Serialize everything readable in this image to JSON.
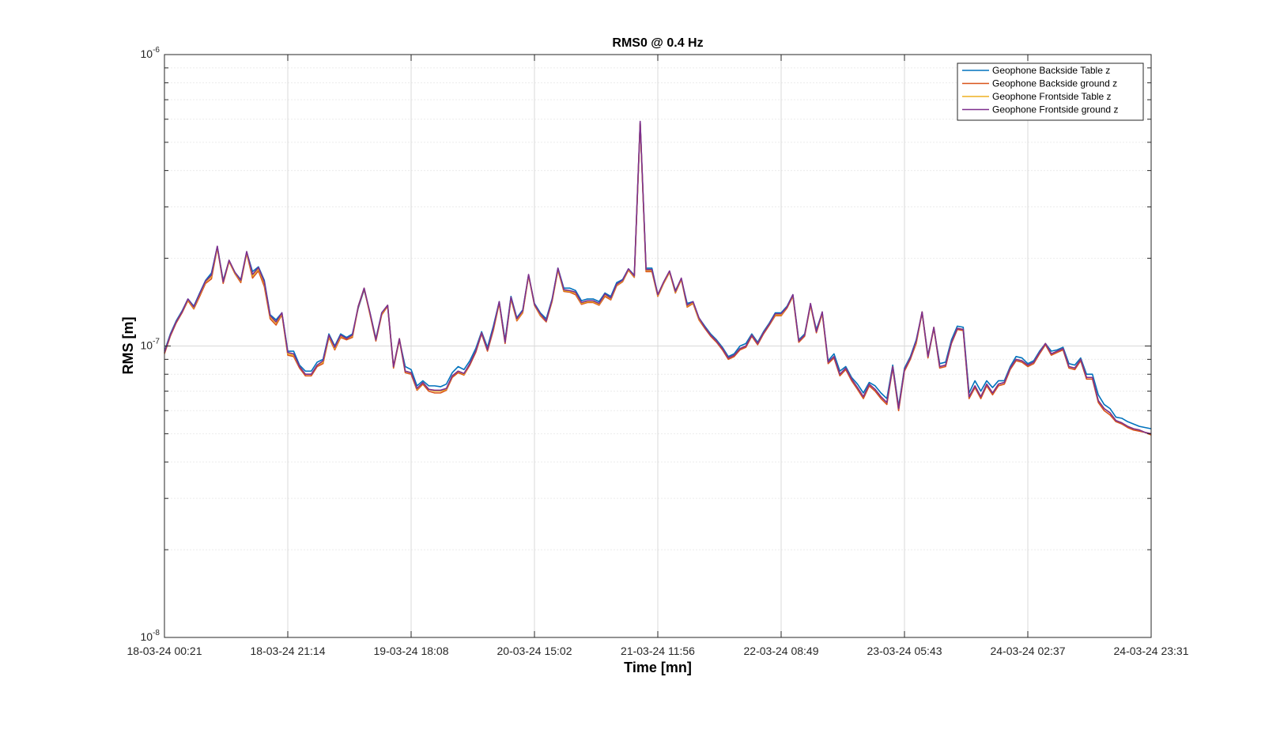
{
  "chart_data": {
    "type": "line",
    "title": "RMS0 @ 0.4 Hz",
    "xlabel": "Time [mn]",
    "ylabel": "RMS [m]",
    "yscale": "log",
    "ylim": [
      1e-08,
      1e-06
    ],
    "y_ticks": [
      {
        "value": 1e-08,
        "base": "10",
        "exp": "-8"
      },
      {
        "value": 1e-07,
        "base": "10",
        "exp": "-7"
      },
      {
        "value": 1e-06,
        "base": "10",
        "exp": "-6"
      }
    ],
    "x_ticks": [
      "18-03-24 00:21",
      "18-03-24 21:14",
      "19-03-24 18:08",
      "20-03-24 15:02",
      "21-03-24 11:56",
      "22-03-24 08:49",
      "23-03-24 05:43",
      "24-03-24 02:37",
      "24-03-24 23:31"
    ],
    "xlim": [
      "18-03-24 00:21",
      "24-03-24 23:31"
    ],
    "grid": true,
    "legend_position": "top-right",
    "series": [
      {
        "name": "Geophone Backside Table z",
        "color": "#0072BD",
        "values": [
          9.6e-08,
          1.1e-07,
          1.22e-07,
          1.32e-07,
          1.45e-07,
          1.37e-07,
          1.52e-07,
          1.68e-07,
          1.78e-07,
          2.19e-07,
          1.68e-07,
          1.96e-07,
          1.79e-07,
          1.69e-07,
          2.1e-07,
          1.8e-07,
          1.87e-07,
          1.68e-07,
          1.28e-07,
          1.23e-07,
          1.3e-07,
          9.6e-08,
          9.6e-08,
          8.6e-08,
          8.2e-08,
          8.2e-08,
          8.8e-08,
          9e-08,
          1.1e-07,
          1e-07,
          1.1e-07,
          1.07e-07,
          1.1e-07,
          1.35e-07,
          1.56e-07,
          1.3e-07,
          1.06e-07,
          1.3e-07,
          1.38e-07,
          8.5e-08,
          1.05e-07,
          8.5e-08,
          8.3e-08,
          7.3e-08,
          7.6e-08,
          7.3e-08,
          7.3e-08,
          7.25e-08,
          7.4e-08,
          8.1e-08,
          8.5e-08,
          8.3e-08,
          8.9e-08,
          9.8e-08,
          1.12e-07,
          9.9e-08,
          1.17e-07,
          1.42e-07,
          1.05e-07,
          1.48e-07,
          1.25e-07,
          1.33e-07,
          1.75e-07,
          1.4e-07,
          1.3e-07,
          1.24e-07,
          1.45e-07,
          1.85e-07,
          1.58e-07,
          1.58e-07,
          1.55e-07,
          1.43e-07,
          1.45e-07,
          1.45e-07,
          1.42e-07,
          1.52e-07,
          1.48e-07,
          1.65e-07,
          1.69e-07,
          1.84e-07,
          1.75e-07,
          5.85e-07,
          1.85e-07,
          1.85e-07,
          1.5e-07,
          1.65e-07,
          1.8e-07,
          1.55e-07,
          1.7e-07,
          1.4e-07,
          1.42e-07,
          1.25e-07,
          1.17e-07,
          1.1e-07,
          1.05e-07,
          9.9e-08,
          9.2e-08,
          9.4e-08,
          1e-07,
          1.02e-07,
          1.1e-07,
          1.03e-07,
          1.12e-07,
          1.2e-07,
          1.3e-07,
          1.3e-07,
          1.37e-07,
          1.5e-07,
          1.05e-07,
          1.1e-07,
          1.38e-07,
          1.14e-07,
          1.3e-07,
          8.9e-08,
          9.4e-08,
          8.2e-08,
          8.5e-08,
          7.8e-08,
          7.4e-08,
          6.9e-08,
          7.5e-08,
          7.3e-08,
          6.9e-08,
          6.6e-08,
          8.6e-08,
          6.2e-08,
          8.4e-08,
          9.2e-08,
          1.05e-07,
          1.3e-07,
          9.3e-08,
          1.15e-07,
          8.7e-08,
          8.8e-08,
          1.05e-07,
          1.17e-07,
          1.16e-07,
          6.9e-08,
          7.6e-08,
          7e-08,
          7.6e-08,
          7.2e-08,
          7.6e-08,
          7.6e-08,
          8.5e-08,
          9.2e-08,
          9.1e-08,
          8.7e-08,
          8.9e-08,
          9.6e-08,
          1.02e-07,
          9.6e-08,
          9.7e-08,
          9.9e-08,
          8.7e-08,
          8.6e-08,
          9.1e-08,
          8e-08,
          8e-08,
          6.8e-08,
          6.3e-08,
          6.1e-08,
          5.7e-08,
          5.65e-08,
          5.5e-08,
          5.4e-08,
          5.3e-08,
          5.25e-08,
          5.2e-08
        ]
      },
      {
        "name": "Geophone Backside ground z",
        "color": "#D95319",
        "values": [
          9.4e-08,
          1.08e-07,
          1.2e-07,
          1.3e-07,
          1.43e-07,
          1.34e-07,
          1.48e-07,
          1.64e-07,
          1.7e-07,
          2.17e-07,
          1.64e-07,
          1.95e-07,
          1.77e-07,
          1.65e-07,
          2.08e-07,
          1.71e-07,
          1.81e-07,
          1.6e-07,
          1.24e-07,
          1.18e-07,
          1.28e-07,
          9.3e-08,
          9.2e-08,
          8.4e-08,
          7.9e-08,
          7.9e-08,
          8.5e-08,
          8.7e-08,
          1.07e-07,
          9.7e-08,
          1.07e-07,
          1.05e-07,
          1.07e-07,
          1.36e-07,
          1.57e-07,
          1.28e-07,
          1.04e-07,
          1.28e-07,
          1.37e-07,
          8.4e-08,
          1.05e-07,
          8.1e-08,
          8e-08,
          7.05e-08,
          7.4e-08,
          7e-08,
          6.9e-08,
          6.9e-08,
          7.05e-08,
          7.8e-08,
          8.1e-08,
          7.95e-08,
          8.6e-08,
          9.5e-08,
          1.1e-07,
          9.6e-08,
          1.13e-07,
          1.4e-07,
          1.02e-07,
          1.45e-07,
          1.22e-07,
          1.3e-07,
          1.74e-07,
          1.38e-07,
          1.27e-07,
          1.21e-07,
          1.42e-07,
          1.82e-07,
          1.54e-07,
          1.53e-07,
          1.5e-07,
          1.39e-07,
          1.41e-07,
          1.41e-07,
          1.38e-07,
          1.48e-07,
          1.44e-07,
          1.61e-07,
          1.66e-07,
          1.82e-07,
          1.72e-07,
          5.8e-07,
          1.8e-07,
          1.8e-07,
          1.48e-07,
          1.64e-07,
          1.79e-07,
          1.52e-07,
          1.69e-07,
          1.36e-07,
          1.4e-07,
          1.23e-07,
          1.15e-07,
          1.08e-07,
          1.03e-07,
          9.7e-08,
          9e-08,
          9.2e-08,
          9.7e-08,
          9.9e-08,
          1.08e-07,
          1.01e-07,
          1.1e-07,
          1.18e-07,
          1.27e-07,
          1.27e-07,
          1.35e-07,
          1.48e-07,
          1.03e-07,
          1.08e-07,
          1.38e-07,
          1.11e-07,
          1.29e-07,
          8.7e-08,
          9.1e-08,
          7.9e-08,
          8.3e-08,
          7.6e-08,
          7.1e-08,
          6.6e-08,
          7.3e-08,
          7e-08,
          6.6e-08,
          6.3e-08,
          8.4e-08,
          6e-08,
          8.2e-08,
          9e-08,
          1.02e-07,
          1.3e-07,
          9.1e-08,
          1.15e-07,
          8.4e-08,
          8.5e-08,
          1.02e-07,
          1.14e-07,
          1.13e-07,
          6.6e-08,
          7.2e-08,
          6.6e-08,
          7.3e-08,
          6.8e-08,
          7.3e-08,
          7.4e-08,
          8.3e-08,
          8.9e-08,
          8.8e-08,
          8.5e-08,
          8.7e-08,
          9.4e-08,
          1.01e-07,
          9.3e-08,
          9.5e-08,
          9.7e-08,
          8.4e-08,
          8.3e-08,
          8.9e-08,
          7.7e-08,
          7.7e-08,
          6.4e-08,
          6e-08,
          5.8e-08,
          5.5e-08,
          5.4e-08,
          5.25e-08,
          5.15e-08,
          5.1e-08,
          5.05e-08,
          4.95e-08
        ]
      },
      {
        "name": "Geophone Frontside Table z",
        "color": "#EDB120",
        "values": [
          9.5e-08,
          1.09e-07,
          1.21e-07,
          1.31e-07,
          1.44e-07,
          1.35e-07,
          1.5e-07,
          1.66e-07,
          1.73e-07,
          2.18e-07,
          1.66e-07,
          1.96e-07,
          1.78e-07,
          1.67e-07,
          2.09e-07,
          1.74e-07,
          1.84e-07,
          1.64e-07,
          1.26e-07,
          1.2e-07,
          1.29e-07,
          9.4e-08,
          9.3e-08,
          8.5e-08,
          8e-08,
          8e-08,
          8.6e-08,
          8.8e-08,
          1.08e-07,
          9.8e-08,
          1.08e-07,
          1.06e-07,
          1.08e-07,
          1.37e-07,
          1.58e-07,
          1.29e-07,
          1.05e-07,
          1.29e-07,
          1.38e-07,
          8.5e-08,
          1.06e-07,
          8.2e-08,
          8.1e-08,
          7.1e-08,
          7.5e-08,
          7.1e-08,
          7e-08,
          7e-08,
          7.1e-08,
          7.9e-08,
          8.2e-08,
          8e-08,
          8.7e-08,
          9.6e-08,
          1.11e-07,
          9.7e-08,
          1.14e-07,
          1.41e-07,
          1.03e-07,
          1.46e-07,
          1.23e-07,
          1.31e-07,
          1.75e-07,
          1.39e-07,
          1.28e-07,
          1.22e-07,
          1.43e-07,
          1.83e-07,
          1.55e-07,
          1.54e-07,
          1.52e-07,
          1.4e-07,
          1.42e-07,
          1.42e-07,
          1.39e-07,
          1.5e-07,
          1.45e-07,
          1.62e-07,
          1.67e-07,
          1.83e-07,
          1.73e-07,
          5.82e-07,
          1.82e-07,
          1.82e-07,
          1.49e-07,
          1.65e-07,
          1.8e-07,
          1.53e-07,
          1.7e-07,
          1.37e-07,
          1.41e-07,
          1.24e-07,
          1.16e-07,
          1.09e-07,
          1.04e-07,
          9.8e-08,
          9.1e-08,
          9.3e-08,
          9.8e-08,
          1e-07,
          1.09e-07,
          1.02e-07,
          1.11e-07,
          1.19e-07,
          1.28e-07,
          1.28e-07,
          1.36e-07,
          1.49e-07,
          1.04e-07,
          1.09e-07,
          1.39e-07,
          1.12e-07,
          1.3e-07,
          8.8e-08,
          9.2e-08,
          8e-08,
          8.4e-08,
          7.7e-08,
          7.2e-08,
          6.7e-08,
          7.4e-08,
          7.1e-08,
          6.7e-08,
          6.4e-08,
          8.5e-08,
          6.1e-08,
          8.3e-08,
          9.1e-08,
          1.03e-07,
          1.31e-07,
          9.2e-08,
          1.16e-07,
          8.5e-08,
          8.6e-08,
          1.03e-07,
          1.15e-07,
          1.14e-07,
          6.7e-08,
          7.3e-08,
          6.7e-08,
          7.4e-08,
          6.9e-08,
          7.4e-08,
          7.5e-08,
          8.4e-08,
          9e-08,
          8.9e-08,
          8.6e-08,
          8.8e-08,
          9.5e-08,
          1.02e-07,
          9.4e-08,
          9.6e-08,
          9.8e-08,
          8.5e-08,
          8.4e-08,
          9e-08,
          7.8e-08,
          7.8e-08,
          6.5e-08,
          6.1e-08,
          5.9e-08,
          5.55e-08,
          5.45e-08,
          5.3e-08,
          5.2e-08,
          5.15e-08,
          5.05e-08,
          5e-08
        ]
      },
      {
        "name": "Geophone Frontside ground z",
        "color": "#7E2F8E",
        "values": [
          9.5e-08,
          1.09e-07,
          1.21e-07,
          1.31e-07,
          1.45e-07,
          1.36e-07,
          1.51e-07,
          1.67e-07,
          1.75e-07,
          2.2e-07,
          1.66e-07,
          1.97e-07,
          1.79e-07,
          1.68e-07,
          2.11e-07,
          1.76e-07,
          1.86e-07,
          1.66e-07,
          1.27e-07,
          1.21e-07,
          1.3e-07,
          9.5e-08,
          9.4e-08,
          8.5e-08,
          8e-08,
          8e-08,
          8.6e-08,
          8.9e-08,
          1.09e-07,
          9.9e-08,
          1.09e-07,
          1.06e-07,
          1.09e-07,
          1.37e-07,
          1.58e-07,
          1.3e-07,
          1.05e-07,
          1.3e-07,
          1.38e-07,
          8.5e-08,
          1.06e-07,
          8.2e-08,
          8.1e-08,
          7.15e-08,
          7.5e-08,
          7.1e-08,
          7.05e-08,
          7.05e-08,
          7.15e-08,
          7.9e-08,
          8.2e-08,
          8.05e-08,
          8.7e-08,
          9.6e-08,
          1.11e-07,
          9.7e-08,
          1.15e-07,
          1.42e-07,
          1.03e-07,
          1.47e-07,
          1.24e-07,
          1.32e-07,
          1.76e-07,
          1.39e-07,
          1.29e-07,
          1.22e-07,
          1.44e-07,
          1.85e-07,
          1.56e-07,
          1.55e-07,
          1.53e-07,
          1.41e-07,
          1.43e-07,
          1.43e-07,
          1.4e-07,
          1.51e-07,
          1.46e-07,
          1.63e-07,
          1.68e-07,
          1.84e-07,
          1.74e-07,
          5.9e-07,
          1.83e-07,
          1.83e-07,
          1.5e-07,
          1.66e-07,
          1.81e-07,
          1.54e-07,
          1.71e-07,
          1.38e-07,
          1.42e-07,
          1.25e-07,
          1.16e-07,
          1.09e-07,
          1.04e-07,
          9.8e-08,
          9.1e-08,
          9.3e-08,
          9.8e-08,
          1e-07,
          1.09e-07,
          1.02e-07,
          1.11e-07,
          1.19e-07,
          1.29e-07,
          1.29e-07,
          1.36e-07,
          1.5e-07,
          1.04e-07,
          1.09e-07,
          1.4e-07,
          1.12e-07,
          1.31e-07,
          8.8e-08,
          9.2e-08,
          8e-08,
          8.4e-08,
          7.7e-08,
          7.2e-08,
          6.7e-08,
          7.4e-08,
          7.1e-08,
          6.7e-08,
          6.4e-08,
          8.5e-08,
          6.1e-08,
          8.3e-08,
          9.1e-08,
          1.04e-07,
          1.31e-07,
          9.2e-08,
          1.16e-07,
          8.5e-08,
          8.6e-08,
          1.03e-07,
          1.15e-07,
          1.14e-07,
          6.7e-08,
          7.3e-08,
          6.7e-08,
          7.4e-08,
          6.9e-08,
          7.4e-08,
          7.5e-08,
          8.4e-08,
          9e-08,
          8.9e-08,
          8.6e-08,
          8.8e-08,
          9.5e-08,
          1.02e-07,
          9.4e-08,
          9.6e-08,
          9.8e-08,
          8.5e-08,
          8.4e-08,
          9e-08,
          7.8e-08,
          7.8e-08,
          6.5e-08,
          6.1e-08,
          5.9e-08,
          5.55e-08,
          5.45e-08,
          5.3e-08,
          5.2e-08,
          5.15e-08,
          5.05e-08,
          5e-08
        ]
      }
    ]
  }
}
